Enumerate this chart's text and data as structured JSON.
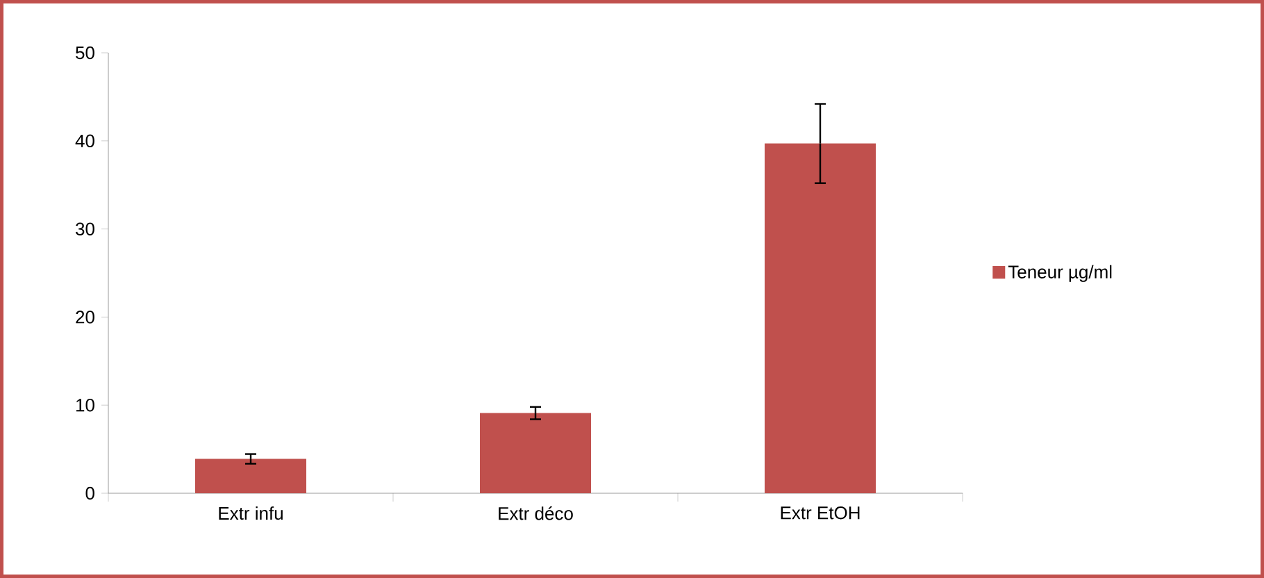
{
  "chart_data": {
    "type": "bar",
    "categories": [
      "Extr infu",
      "Extr déco",
      "Extr EtOH"
    ],
    "series": [
      {
        "name": "Teneur µg/ml",
        "color": "#c0504d",
        "values": [
          3.9,
          9.1,
          39.7
        ],
        "errors": [
          0.55,
          0.7,
          4.5
        ]
      }
    ],
    "ylim": [
      0,
      50
    ],
    "yticks": [
      0,
      10,
      20,
      30,
      40,
      50
    ],
    "grid": false,
    "legend": "right"
  }
}
